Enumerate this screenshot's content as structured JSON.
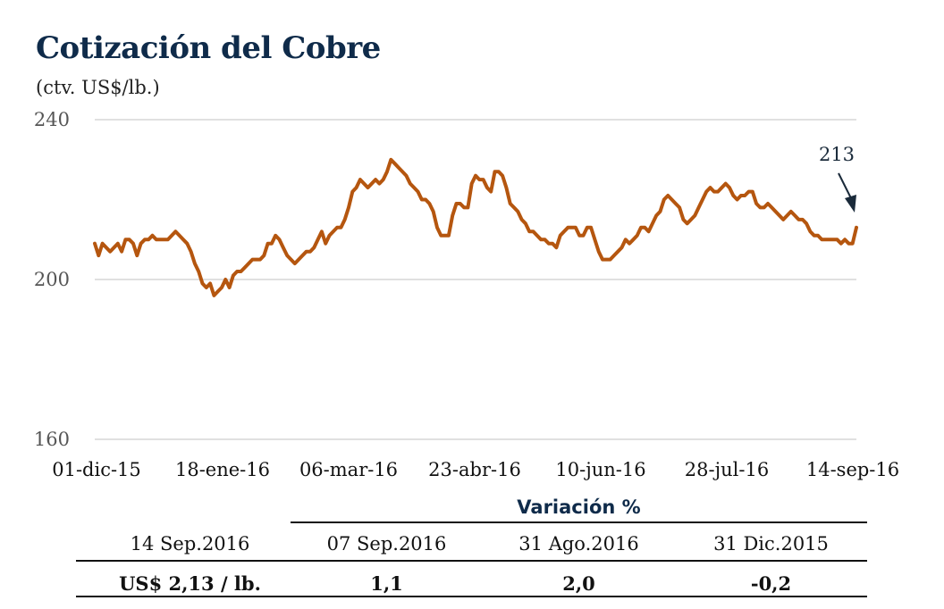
{
  "title": "Cotización del Cobre",
  "subtitle": "(ctv. US$/lb.)",
  "chart_data": {
    "type": "line",
    "ylim": [
      160,
      240
    ],
    "yticks": [
      "240",
      "200",
      "160"
    ],
    "xticks": [
      "01-dic-15",
      "18-ene-16",
      "06-mar-16",
      "23-abr-16",
      "10-jun-16",
      "28-jul-16",
      "14-sep-16"
    ],
    "line_color": "#b5560f",
    "grid": true,
    "annotation": "213",
    "series": [
      {
        "values": [
          209,
          206,
          209,
          208,
          207,
          208,
          209,
          207,
          210,
          210,
          209,
          206,
          209,
          210,
          210,
          211,
          210,
          210,
          210,
          210,
          211,
          212,
          211,
          210,
          209,
          207,
          204,
          202,
          199,
          198,
          199,
          196,
          197,
          198,
          200,
          198,
          201,
          202,
          202,
          203,
          204,
          205,
          205,
          205,
          206,
          209,
          209,
          211,
          210,
          208,
          206,
          205,
          204,
          205,
          206,
          207,
          207,
          208,
          210,
          212,
          209,
          211,
          212,
          213,
          213,
          215,
          218,
          222,
          223,
          225,
          224,
          223,
          224,
          225,
          224,
          225,
          227,
          230,
          229,
          228,
          227,
          226,
          224,
          223,
          222,
          220,
          220,
          219,
          217,
          213,
          211,
          211,
          211,
          216,
          219,
          219,
          218,
          218,
          224,
          226,
          225,
          225,
          223,
          222,
          227,
          227,
          226,
          223,
          219,
          218,
          217,
          215,
          214,
          212,
          212,
          211,
          210,
          210,
          209,
          209,
          208,
          211,
          212,
          213,
          213,
          213,
          211,
          211,
          213,
          213,
          210,
          207,
          205,
          205,
          205,
          206,
          207,
          208,
          210,
          209,
          210,
          211,
          213,
          213,
          212,
          214,
          216,
          217,
          220,
          221,
          220,
          219,
          218,
          215,
          214,
          215,
          216,
          218,
          220,
          222,
          223,
          222,
          222,
          223,
          224,
          223,
          221,
          220,
          221,
          221,
          222,
          222,
          219,
          218,
          218,
          219,
          218,
          217,
          216,
          215,
          216,
          217,
          216,
          215,
          215,
          214,
          212,
          211,
          211,
          210,
          210,
          210,
          210,
          210,
          209,
          210,
          209,
          209,
          213
        ]
      }
    ]
  },
  "table": {
    "header": "Variación %",
    "columns": [
      "14 Sep.2016",
      "07 Sep.2016",
      "31 Ago.2016",
      "31 Dic.2015"
    ],
    "values": [
      "US$ 2,13 / lb.",
      "1,1",
      "2,0",
      "-0,2"
    ]
  }
}
